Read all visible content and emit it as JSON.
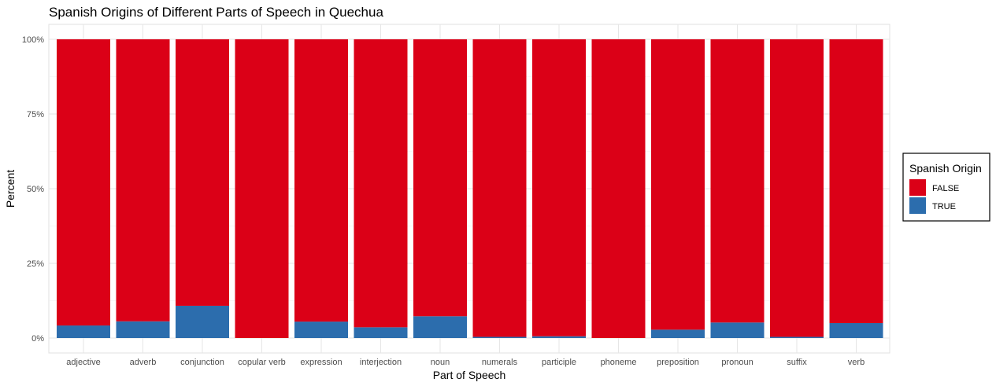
{
  "chart_data": {
    "type": "bar",
    "stacked": true,
    "title": "Spanish Origins of Different Parts of Speech in Quechua",
    "xlabel": "Part of Speech",
    "ylabel": "Percent",
    "ylim": [
      0,
      100
    ],
    "yticks": [
      "0%",
      "25%",
      "50%",
      "75%",
      "100%"
    ],
    "ytick_values": [
      0,
      25,
      50,
      75,
      100
    ],
    "categories": [
      "adjective",
      "adverb",
      "conjunction",
      "copular verb",
      "expression",
      "interjection",
      "noun",
      "numerals",
      "participle",
      "phoneme",
      "preposition",
      "pronoun",
      "suffix",
      "verb"
    ],
    "series": [
      {
        "name": "TRUE",
        "color": "#2c6dad",
        "values": [
          4.2,
          5.6,
          10.8,
          0,
          5.5,
          3.6,
          7.3,
          0.4,
          0.6,
          0,
          2.8,
          5.2,
          0.4,
          5.0
        ]
      },
      {
        "name": "FALSE",
        "color": "#db0017",
        "values": [
          95.8,
          94.4,
          89.2,
          100,
          94.5,
          96.4,
          92.7,
          99.6,
          99.4,
          100,
          97.2,
          94.8,
          99.6,
          95.0
        ]
      }
    ],
    "legend": {
      "title": "Spanish Origin",
      "position": "right",
      "entries": [
        {
          "label": "FALSE",
          "color": "#db0017"
        },
        {
          "label": "TRUE",
          "color": "#2c6dad"
        }
      ]
    },
    "grid": true
  }
}
